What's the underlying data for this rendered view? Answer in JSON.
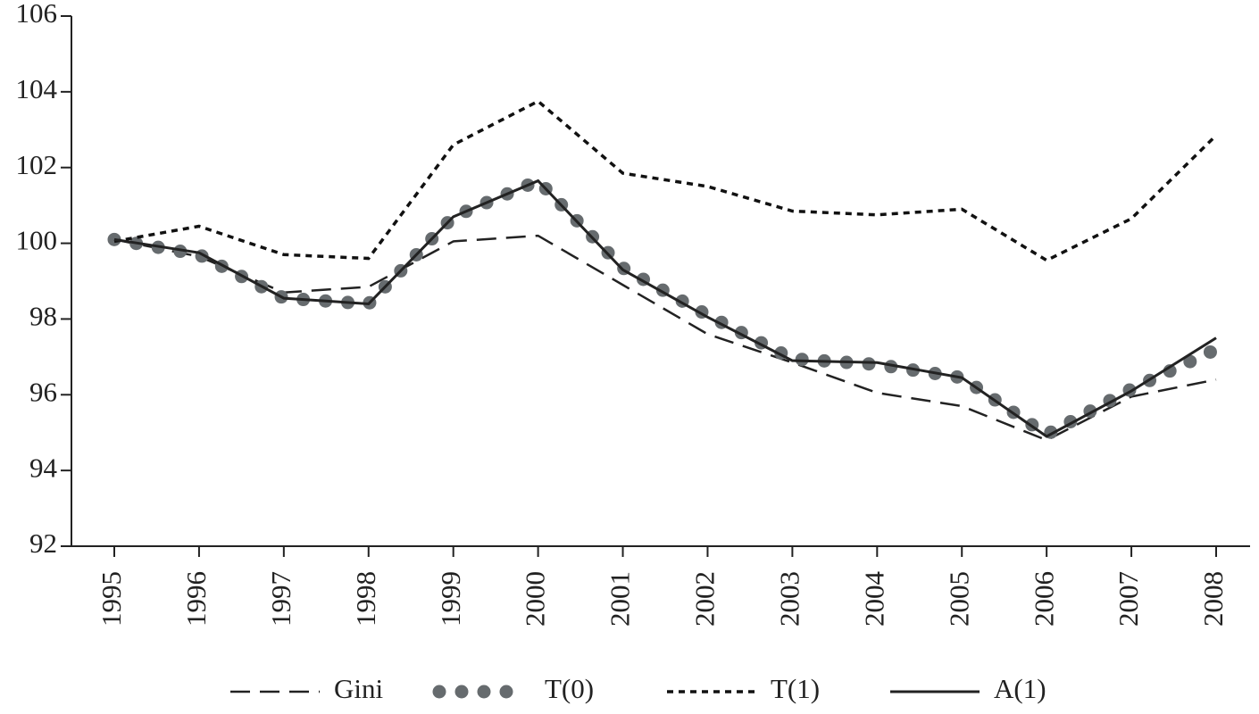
{
  "chart_data": {
    "type": "line",
    "categories": [
      "1995",
      "1996",
      "1997",
      "1998",
      "1999",
      "2000",
      "2001",
      "2002",
      "2003",
      "2004",
      "2005",
      "2006",
      "2007",
      "2008"
    ],
    "series": [
      {
        "name": "Gini",
        "color": "#222222",
        "style": "dashed",
        "values": [
          100.1,
          99.65,
          98.7,
          98.85,
          100.05,
          100.2,
          98.9,
          97.6,
          96.85,
          96.05,
          95.7,
          94.8,
          95.95,
          96.4
        ]
      },
      {
        "name": "T(0)",
        "color": "#666b6e",
        "style": "dots",
        "values": [
          100.1,
          99.7,
          98.55,
          98.4,
          100.7,
          101.65,
          99.35,
          98.1,
          96.95,
          96.8,
          96.45,
          94.95,
          96.15,
          97.2
        ]
      },
      {
        "name": "T(1)",
        "color": "#111111",
        "style": "dotted",
        "values": [
          100.05,
          100.45,
          99.7,
          99.6,
          102.6,
          103.75,
          101.85,
          101.5,
          100.85,
          100.75,
          100.9,
          99.55,
          100.65,
          102.85
        ]
      },
      {
        "name": "A(1)",
        "color": "#222222",
        "style": "solid",
        "values": [
          100.1,
          99.75,
          98.55,
          98.4,
          100.7,
          101.65,
          99.3,
          98.05,
          96.9,
          96.85,
          96.45,
          94.9,
          96.1,
          97.5
        ]
      }
    ],
    "ylim": [
      92,
      106
    ],
    "yticks": [
      92,
      94,
      96,
      98,
      100,
      102,
      104,
      106
    ],
    "legend": "bottom"
  }
}
